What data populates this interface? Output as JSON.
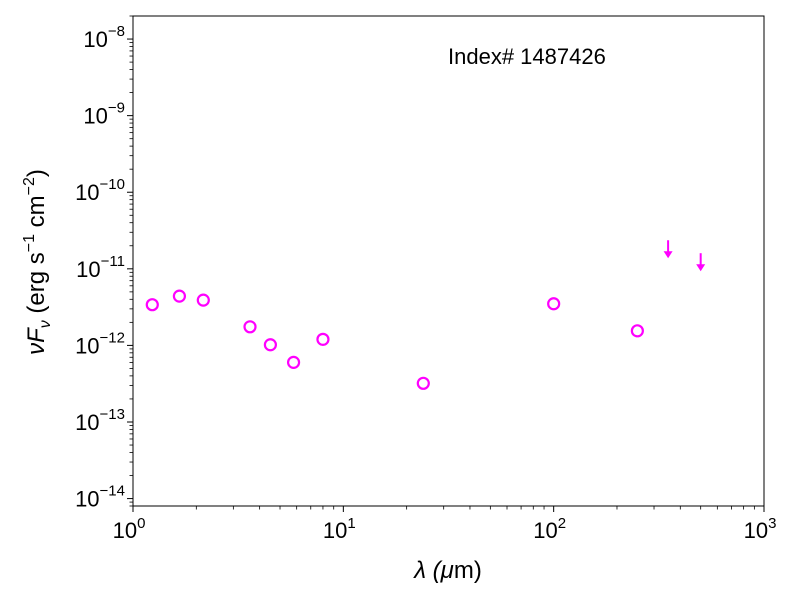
{
  "chart_data": {
    "type": "scatter",
    "title": "",
    "annotation": "Index# 1487426",
    "xlabel": {
      "main": "λ (",
      "unit_mu": "μ",
      "unit_rest": "m)"
    },
    "ylabel": {
      "nu": "ν",
      "F": "F",
      "sub": "ν",
      "units_a": " (erg s",
      "exp_a": "−1",
      "units_b": " cm",
      "exp_b": "−2",
      "close": ")"
    },
    "xscale": "log",
    "yscale": "log",
    "xlim": [
      1,
      1000
    ],
    "ylim": [
      8e-15,
      2e-08
    ],
    "x_ticks": [
      {
        "value": 1,
        "base": "10",
        "exp": "0"
      },
      {
        "value": 10,
        "base": "10",
        "exp": "1"
      },
      {
        "value": 100,
        "base": "10",
        "exp": "2"
      },
      {
        "value": 1000,
        "base": "10",
        "exp": "3"
      }
    ],
    "y_ticks": [
      {
        "value": 1e-14,
        "base": "10",
        "exp": "−14"
      },
      {
        "value": 1e-13,
        "base": "10",
        "exp": "−13"
      },
      {
        "value": 1e-12,
        "base": "10",
        "exp": "−12"
      },
      {
        "value": 1e-11,
        "base": "10",
        "exp": "−11"
      },
      {
        "value": 1e-10,
        "base": "10",
        "exp": "−10"
      },
      {
        "value": 1e-09,
        "base": "10",
        "exp": "−9"
      },
      {
        "value": 1e-08,
        "base": "10",
        "exp": "−8"
      }
    ],
    "grid": false,
    "marker_color": "#ff00ff",
    "series": [
      {
        "marker": "open-circle",
        "points": [
          {
            "x": 1.235,
            "y": 3.4e-12
          },
          {
            "x": 1.662,
            "y": 4.4e-12
          },
          {
            "x": 2.159,
            "y": 3.9e-12
          },
          {
            "x": 3.6,
            "y": 1.75e-12
          },
          {
            "x": 4.5,
            "y": 1.02e-12
          },
          {
            "x": 5.8,
            "y": 6e-13
          },
          {
            "x": 8.0,
            "y": 1.2e-12
          },
          {
            "x": 24.0,
            "y": 3.2e-13
          },
          {
            "x": 100.0,
            "y": 3.5e-12
          },
          {
            "x": 250.0,
            "y": 1.55e-12
          }
        ]
      },
      {
        "marker": "upper-limit-arrow",
        "points": [
          {
            "x": 350.0,
            "y": 1.55e-11
          },
          {
            "x": 500.0,
            "y": 1.05e-11
          }
        ]
      }
    ]
  }
}
